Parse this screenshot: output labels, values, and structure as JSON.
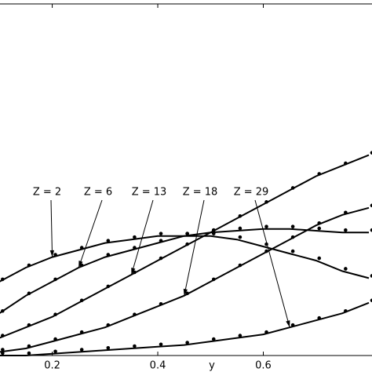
{
  "chart_data": {
    "type": "line",
    "x_label": "y",
    "x": [
      0.1,
      0.15,
      0.2,
      0.25,
      0.3,
      0.35,
      0.4,
      0.45,
      0.5,
      0.55,
      0.6,
      0.65,
      0.7,
      0.75,
      0.8
    ],
    "xlim": [
      0.101,
      0.806
    ],
    "xticks": [
      0.2,
      0.4,
      0.6
    ],
    "ylim": [
      0,
      1
    ],
    "series": [
      {
        "name": "Z = 2",
        "color": "#000000",
        "values": [
          0.21,
          0.25,
          0.28,
          0.3,
          0.32,
          0.33,
          0.34,
          0.34,
          0.34,
          0.33,
          0.31,
          0.29,
          0.27,
          0.24,
          0.22
        ]
      },
      {
        "name": "Z = 6",
        "color": "#000000",
        "values": [
          0.12,
          0.17,
          0.21,
          0.25,
          0.28,
          0.3,
          0.32,
          0.34,
          0.35,
          0.355,
          0.36,
          0.36,
          0.355,
          0.35,
          0.35
        ]
      },
      {
        "name": "Z = 13",
        "color": "#000000",
        "values": [
          0.05,
          0.08,
          0.11,
          0.15,
          0.19,
          0.23,
          0.27,
          0.31,
          0.35,
          0.39,
          0.43,
          0.47,
          0.51,
          0.54,
          0.57
        ]
      },
      {
        "name": "Z = 18",
        "color": "#000000",
        "values": [
          0.01,
          0.02,
          0.04,
          0.06,
          0.08,
          0.11,
          0.14,
          0.17,
          0.21,
          0.25,
          0.29,
          0.33,
          0.37,
          0.4,
          0.42
        ]
      },
      {
        "name": "Z = 29",
        "color": "#000000",
        "values": [
          0,
          0,
          0.005,
          0.01,
          0.015,
          0.02,
          0.025,
          0.03,
          0.04,
          0.05,
          0.06,
          0.08,
          0.1,
          0.12,
          0.15
        ]
      }
    ]
  }
}
